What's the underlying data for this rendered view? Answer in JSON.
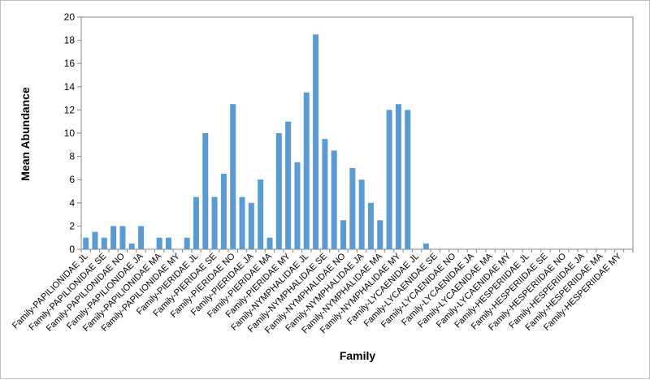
{
  "chart_data": {
    "type": "bar",
    "title": "",
    "xlabel": "Family",
    "ylabel": "Mean Abundance",
    "ylim": [
      0,
      20
    ],
    "ytick_step": 2,
    "grid": false,
    "bar_color": "#5B9BD5",
    "categories": [
      "Family-PAPILIONIDAE JL",
      "",
      "Family-PAPILIONIDAE SE",
      "",
      "Family-PAPILIONIDAE NO",
      "",
      "Family-PAPILIONIDAE JA",
      "",
      "Family-PAPILIONIDAE MA",
      "",
      "Family-PAPILIONIDAE MY",
      "",
      "Family-PIERIDAE JL",
      "",
      "Family-PIERIDAE SE",
      "",
      "Family-PIERIDAE NO",
      "",
      "Family-PIERIDAE JA",
      "",
      "Family-PIERIDAE MA",
      "",
      "Family-PIERIDAE MY",
      "",
      "Family-NYMPHALIDAE JL",
      "",
      "Family-NYMPHALIDAE SE",
      "",
      "Family-NYMPHALIDAE NO",
      "",
      "Family-NYMPHALIDAE JA",
      "",
      "Family-NYMPHALIDAE MA",
      "",
      "Family-NYMPHALIDAE MY",
      "",
      "Family-LYCAENIDAE JL",
      "",
      "Family-LYCAENIDAE SE",
      "",
      "Family-LYCAENIDAE NO",
      "",
      "Family-LYCAENIDAE JA",
      "",
      "Family-LYCAENIDAE MA",
      "",
      "Family-LYCAENIDAE MY",
      "",
      "Family-HESPERIIDAE JL",
      "",
      "Family-HESPERIIDAE SE",
      "",
      "Family-HESPERIIDAE NO",
      "",
      "Family-HESPERIIDAE JA",
      "",
      "Family-HESPERIIDAE MA",
      "",
      "Family-HESPERIIDAE MY",
      ""
    ],
    "values": [
      1,
      1.5,
      1,
      2,
      2,
      0.5,
      2,
      0,
      1,
      1,
      0,
      1,
      4.5,
      10,
      4.5,
      6.5,
      12.5,
      4.5,
      4,
      6,
      1,
      10,
      11,
      7.5,
      13.5,
      18.5,
      9.5,
      8.5,
      2.5,
      7,
      6,
      4,
      2.5,
      12,
      12.5,
      12,
      0,
      0.5,
      0,
      0,
      0,
      0,
      0,
      0,
      0,
      0,
      0,
      0,
      0,
      0,
      0,
      0,
      0,
      0,
      0,
      0,
      0,
      0,
      0,
      0
    ]
  }
}
